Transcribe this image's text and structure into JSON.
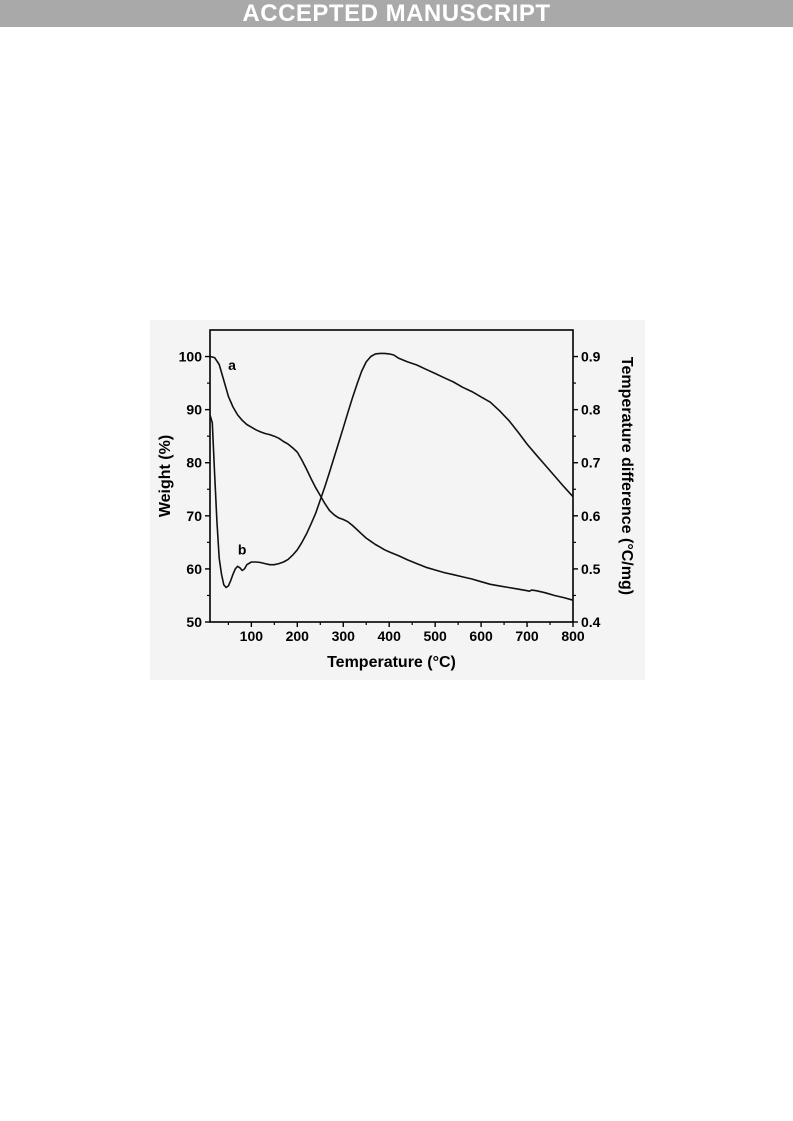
{
  "banner": {
    "text": "ACCEPTED MANUSCRIPT"
  },
  "chart_data": {
    "type": "line",
    "xlabel": "Temperature (°C)",
    "ylabel_left": "Weight (%)",
    "ylabel_right": "Temperature difference (°C/mg)",
    "xlim": [
      10,
      800
    ],
    "ylim_left": [
      50,
      105
    ],
    "ylim_right": [
      0.4,
      0.95
    ],
    "x_ticks": [
      "100",
      "200",
      "300",
      "400",
      "500",
      "600",
      "700",
      "800"
    ],
    "y_left_ticks": [
      "50",
      "60",
      "70",
      "80",
      "90",
      "100"
    ],
    "y_right_ticks": [
      "0.4",
      "0.5",
      "0.6",
      "0.7",
      "0.8",
      "0.9"
    ],
    "grid": false,
    "series": [
      {
        "name": "a",
        "axis": "left",
        "points": [
          [
            10,
            100
          ],
          [
            20,
            99.8
          ],
          [
            30,
            98.5
          ],
          [
            40,
            95.5
          ],
          [
            50,
            92.5
          ],
          [
            60,
            90.5
          ],
          [
            70,
            89
          ],
          [
            80,
            88
          ],
          [
            90,
            87.2
          ],
          [
            100,
            86.7
          ],
          [
            110,
            86.2
          ],
          [
            120,
            85.8
          ],
          [
            130,
            85.5
          ],
          [
            140,
            85.3
          ],
          [
            150,
            85
          ],
          [
            160,
            84.6
          ],
          [
            170,
            84
          ],
          [
            180,
            83.5
          ],
          [
            190,
            82.8
          ],
          [
            200,
            82
          ],
          [
            210,
            80.5
          ],
          [
            220,
            78.8
          ],
          [
            230,
            77
          ],
          [
            240,
            75.3
          ],
          [
            250,
            73.8
          ],
          [
            260,
            72.3
          ],
          [
            270,
            71
          ],
          [
            280,
            70.2
          ],
          [
            290,
            69.6
          ],
          [
            300,
            69.3
          ],
          [
            310,
            68.9
          ],
          [
            320,
            68.2
          ],
          [
            330,
            67.4
          ],
          [
            340,
            66.6
          ],
          [
            350,
            65.8
          ],
          [
            360,
            65.2
          ],
          [
            370,
            64.6
          ],
          [
            380,
            64.1
          ],
          [
            390,
            63.6
          ],
          [
            400,
            63.2
          ],
          [
            420,
            62.5
          ],
          [
            440,
            61.7
          ],
          [
            460,
            61
          ],
          [
            480,
            60.3
          ],
          [
            500,
            59.8
          ],
          [
            520,
            59.3
          ],
          [
            540,
            58.9
          ],
          [
            560,
            58.5
          ],
          [
            580,
            58.1
          ],
          [
            600,
            57.6
          ],
          [
            620,
            57.1
          ],
          [
            640,
            56.8
          ],
          [
            660,
            56.5
          ],
          [
            680,
            56.2
          ],
          [
            700,
            55.9
          ],
          [
            705,
            55.8
          ],
          [
            710,
            56
          ],
          [
            720,
            55.9
          ],
          [
            740,
            55.5
          ],
          [
            760,
            55
          ],
          [
            780,
            54.6
          ],
          [
            800,
            54.1
          ]
        ]
      },
      {
        "name": "b",
        "axis": "right",
        "points": [
          [
            10,
            0.79
          ],
          [
            15,
            0.775
          ],
          [
            20,
            0.68
          ],
          [
            25,
            0.59
          ],
          [
            30,
            0.52
          ],
          [
            35,
            0.49
          ],
          [
            40,
            0.47
          ],
          [
            45,
            0.465
          ],
          [
            50,
            0.468
          ],
          [
            55,
            0.478
          ],
          [
            60,
            0.49
          ],
          [
            65,
            0.5
          ],
          [
            70,
            0.505
          ],
          [
            75,
            0.502
          ],
          [
            80,
            0.497
          ],
          [
            85,
            0.5
          ],
          [
            90,
            0.508
          ],
          [
            100,
            0.513
          ],
          [
            110,
            0.513
          ],
          [
            120,
            0.512
          ],
          [
            130,
            0.51
          ],
          [
            140,
            0.508
          ],
          [
            150,
            0.508
          ],
          [
            160,
            0.51
          ],
          [
            170,
            0.513
          ],
          [
            180,
            0.518
          ],
          [
            190,
            0.526
          ],
          [
            200,
            0.536
          ],
          [
            210,
            0.55
          ],
          [
            220,
            0.566
          ],
          [
            230,
            0.585
          ],
          [
            240,
            0.605
          ],
          [
            250,
            0.63
          ],
          [
            260,
            0.655
          ],
          [
            270,
            0.682
          ],
          [
            280,
            0.71
          ],
          [
            290,
            0.738
          ],
          [
            300,
            0.766
          ],
          [
            310,
            0.794
          ],
          [
            320,
            0.822
          ],
          [
            330,
            0.848
          ],
          [
            340,
            0.872
          ],
          [
            350,
            0.89
          ],
          [
            360,
            0.9
          ],
          [
            370,
            0.905
          ],
          [
            380,
            0.906
          ],
          [
            390,
            0.906
          ],
          [
            400,
            0.905
          ],
          [
            410,
            0.903
          ],
          [
            420,
            0.897
          ],
          [
            440,
            0.89
          ],
          [
            460,
            0.884
          ],
          [
            480,
            0.876
          ],
          [
            500,
            0.868
          ],
          [
            520,
            0.86
          ],
          [
            540,
            0.852
          ],
          [
            560,
            0.842
          ],
          [
            580,
            0.834
          ],
          [
            600,
            0.824
          ],
          [
            620,
            0.814
          ],
          [
            640,
            0.798
          ],
          [
            660,
            0.78
          ],
          [
            680,
            0.758
          ],
          [
            700,
            0.735
          ],
          [
            720,
            0.715
          ],
          [
            740,
            0.695
          ],
          [
            760,
            0.675
          ],
          [
            780,
            0.655
          ],
          [
            800,
            0.636
          ]
        ]
      }
    ],
    "annotations": [
      {
        "text": "a",
        "x": 58,
        "y": 97.5,
        "axis": "left"
      },
      {
        "text": "b",
        "x": 80,
        "y": 0.527,
        "axis": "right"
      }
    ]
  }
}
